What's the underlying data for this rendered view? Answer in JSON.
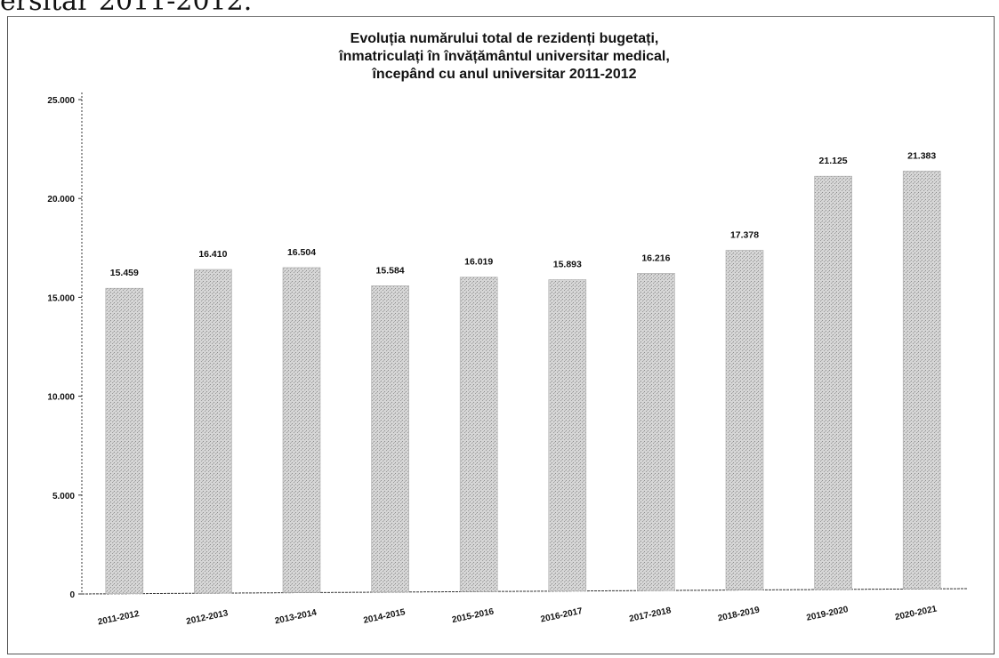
{
  "page": {
    "top_text": "ersitar 2011-2012."
  },
  "colors": {
    "bar": "#c9c9c9",
    "axis": "#333333",
    "text": "#111111"
  },
  "chart_data": {
    "type": "bar",
    "title_lines": [
      "Evoluția numărului total de rezidenți bugetați,",
      "înmatriculați în învățământul universitar medical,",
      "începând cu anul universitar 2011-2012"
    ],
    "categories": [
      "2011-2012",
      "2012-2013",
      "2013-2014",
      "2014-2015",
      "2015-2016",
      "2016-2017",
      "2017-2018",
      "2018-2019",
      "2019-2020",
      "2020-2021"
    ],
    "values": [
      15459,
      16410,
      16504,
      15584,
      16019,
      15893,
      16216,
      17378,
      21125,
      21383
    ],
    "value_labels": [
      "15.459",
      "16.410",
      "16.504",
      "15.584",
      "16.019",
      "15.893",
      "16.216",
      "17.378",
      "21.125",
      "21.383"
    ],
    "y_ticks": [
      0,
      5000,
      10000,
      15000,
      20000,
      25000
    ],
    "y_tick_labels": [
      "0",
      "5.000",
      "10.000",
      "15.000",
      "20.000",
      "25.000"
    ],
    "ylim": [
      0,
      25000
    ],
    "grid": false,
    "legend": "none"
  }
}
